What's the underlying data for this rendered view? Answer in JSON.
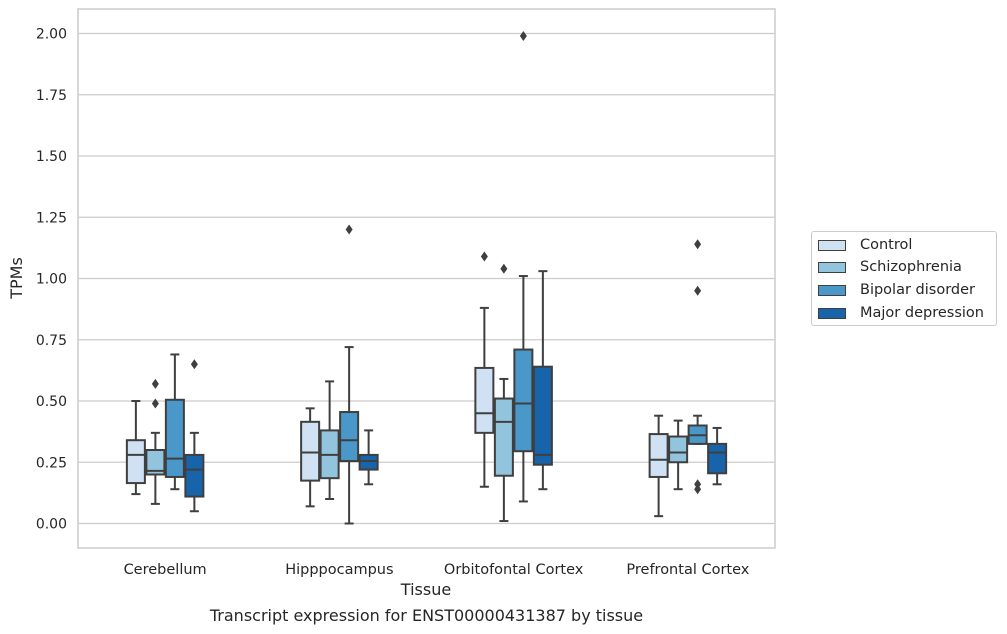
{
  "caption": "Transcript expression for ENST00000431387 by tissue",
  "colors": {
    "Control": "#cfe1f2",
    "Schizophrenia": "#93c4de",
    "Bipolar disorder": "#4a98c9",
    "Major depression": "#1764ab",
    "grid": "#cccccc",
    "line": "#3f3f3f"
  },
  "chart_data": {
    "type": "boxplot",
    "title": "",
    "xlabel": "Tissue",
    "ylabel": "TPMs",
    "ylim": [
      -0.1,
      2.1
    ],
    "yticks": [
      "0.00",
      "0.25",
      "0.50",
      "0.75",
      "1.00",
      "1.25",
      "1.50",
      "1.75",
      "2.00"
    ],
    "grid": true,
    "legend_position": "right",
    "categories": [
      "Cerebellum",
      "Hipppocampus",
      "Orbitofontal Cortex",
      "Prefrontal Cortex"
    ],
    "series": [
      {
        "name": "Control",
        "boxes": [
          {
            "whislo": 0.12,
            "q1": 0.165,
            "med": 0.28,
            "q3": 0.34,
            "whishi": 0.5,
            "fliers": []
          },
          {
            "whislo": 0.07,
            "q1": 0.175,
            "med": 0.29,
            "q3": 0.415,
            "whishi": 0.47,
            "fliers": []
          },
          {
            "whislo": 0.15,
            "q1": 0.37,
            "med": 0.45,
            "q3": 0.635,
            "whishi": 0.88,
            "fliers": [
              1.09
            ]
          },
          {
            "whislo": 0.03,
            "q1": 0.19,
            "med": 0.26,
            "q3": 0.365,
            "whishi": 0.44,
            "fliers": []
          }
        ]
      },
      {
        "name": "Schizophrenia",
        "boxes": [
          {
            "whislo": 0.08,
            "q1": 0.2,
            "med": 0.215,
            "q3": 0.3,
            "whishi": 0.37,
            "fliers": [
              0.49,
              0.57
            ]
          },
          {
            "whislo": 0.1,
            "q1": 0.185,
            "med": 0.28,
            "q3": 0.38,
            "whishi": 0.58,
            "fliers": []
          },
          {
            "whislo": 0.01,
            "q1": 0.195,
            "med": 0.415,
            "q3": 0.51,
            "whishi": 0.59,
            "fliers": [
              1.04
            ]
          },
          {
            "whislo": 0.14,
            "q1": 0.25,
            "med": 0.29,
            "q3": 0.355,
            "whishi": 0.42,
            "fliers": []
          }
        ]
      },
      {
        "name": "Bipolar disorder",
        "boxes": [
          {
            "whislo": 0.14,
            "q1": 0.19,
            "med": 0.265,
            "q3": 0.505,
            "whishi": 0.69,
            "fliers": []
          },
          {
            "whislo": 0.0,
            "q1": 0.255,
            "med": 0.34,
            "q3": 0.455,
            "whishi": 0.72,
            "fliers": [
              1.2
            ]
          },
          {
            "whislo": 0.09,
            "q1": 0.295,
            "med": 0.49,
            "q3": 0.71,
            "whishi": 1.01,
            "fliers": [
              1.99
            ]
          },
          {
            "whislo": 0.325,
            "q1": 0.325,
            "med": 0.36,
            "q3": 0.4,
            "whishi": 0.44,
            "fliers": [
              0.14,
              0.16,
              0.95,
              1.14
            ]
          }
        ]
      },
      {
        "name": "Major depression",
        "boxes": [
          {
            "whislo": 0.05,
            "q1": 0.11,
            "med": 0.22,
            "q3": 0.28,
            "whishi": 0.37,
            "fliers": [
              0.65
            ]
          },
          {
            "whislo": 0.16,
            "q1": 0.22,
            "med": 0.255,
            "q3": 0.28,
            "whishi": 0.38,
            "fliers": []
          },
          {
            "whislo": 0.14,
            "q1": 0.24,
            "med": 0.28,
            "q3": 0.64,
            "whishi": 1.03,
            "fliers": []
          },
          {
            "whislo": 0.16,
            "q1": 0.205,
            "med": 0.29,
            "q3": 0.325,
            "whishi": 0.39,
            "fliers": []
          }
        ]
      }
    ]
  }
}
